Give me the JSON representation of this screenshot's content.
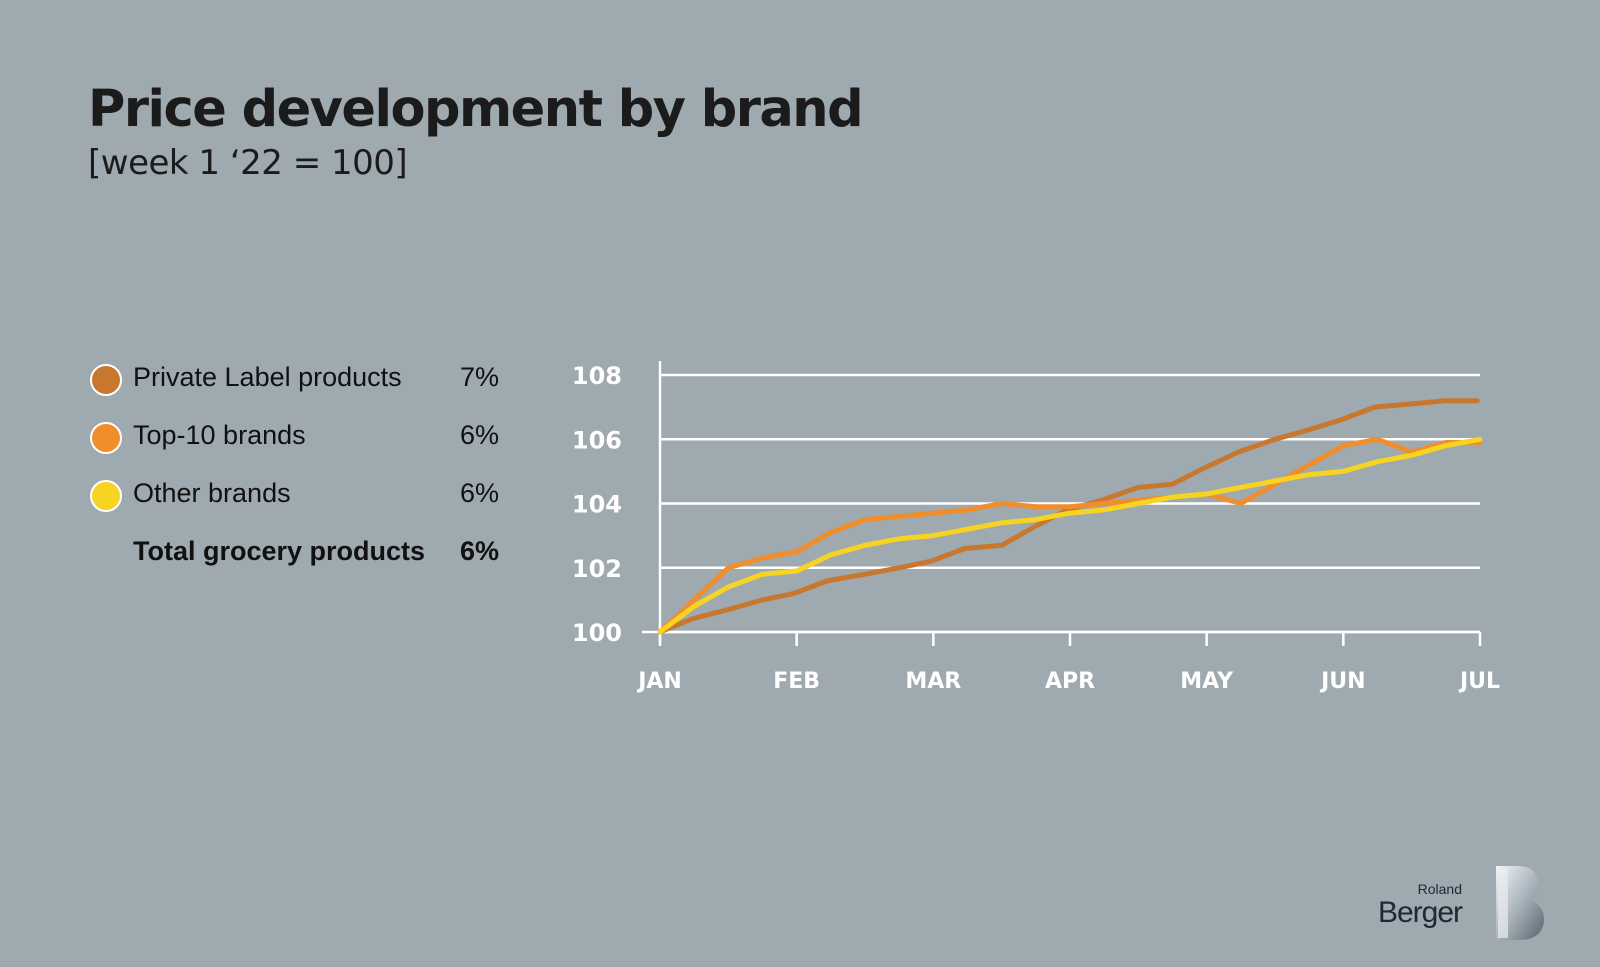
{
  "header": {
    "title": "Price development by brand",
    "subtitle": "[week 1 ‘22 = 100]"
  },
  "legend": [
    {
      "label": "Private Label products",
      "value": "7%",
      "color": "#c8782e"
    },
    {
      "label": "Top-10 brands",
      "value": "6%",
      "color": "#f08e2b"
    },
    {
      "label": "Other brands",
      "value": "6%",
      "color": "#f6d421"
    },
    {
      "label": "Total grocery products",
      "value": "6%"
    }
  ],
  "logo": {
    "small": "Roland",
    "big": "Berger"
  },
  "colors": {
    "background": "#9ea9b0",
    "grid": "#ffffff",
    "text": "#1b1b1b"
  },
  "chart_data": {
    "type": "line",
    "x_ticks": [
      "JAN",
      "FEB",
      "MAR",
      "APR",
      "MAY",
      "JUN",
      "JUL"
    ],
    "y_ticks": [
      100,
      102,
      104,
      106,
      108
    ],
    "ylim": [
      100,
      108
    ],
    "xlim": [
      0,
      6
    ],
    "grid": true,
    "series": [
      {
        "name": "Private Label products",
        "color": "#c8782e",
        "x": [
          0,
          0.23,
          0.5,
          0.75,
          0.98,
          1.23,
          1.5,
          1.75,
          1.98,
          2.23,
          2.5,
          2.75,
          2.98,
          3.23,
          3.5,
          3.75,
          3.98,
          4.23,
          4.5,
          4.75,
          4.98,
          5.23,
          5.5,
          5.75,
          5.98
        ],
        "y": [
          100.0,
          100.4,
          100.7,
          101.0,
          101.2,
          101.6,
          101.8,
          102.0,
          102.2,
          102.6,
          102.7,
          103.3,
          103.8,
          104.1,
          104.5,
          104.6,
          105.1,
          105.6,
          106.0,
          106.3,
          106.6,
          107.0,
          107.1,
          107.2,
          107.2
        ]
      },
      {
        "name": "Top-10 brands",
        "color": "#f08e2b",
        "x": [
          0,
          0.25,
          0.5,
          0.75,
          1.0,
          1.25,
          1.5,
          1.75,
          2.0,
          2.25,
          2.5,
          2.75,
          3.0,
          3.25,
          3.5,
          3.75,
          4.0,
          4.25,
          4.5,
          4.75,
          5.0,
          5.25,
          5.5,
          5.75,
          6.0
        ],
        "y": [
          100.0,
          101.0,
          102.0,
          102.3,
          102.5,
          103.1,
          103.5,
          103.6,
          103.7,
          103.8,
          104.0,
          103.9,
          103.9,
          104.0,
          104.1,
          104.2,
          104.3,
          104.0,
          104.6,
          105.2,
          105.8,
          106.0,
          105.6,
          105.9,
          105.9
        ]
      },
      {
        "name": "Other brands",
        "color": "#f6d421",
        "x": [
          0,
          0.25,
          0.5,
          0.75,
          1.0,
          1.25,
          1.5,
          1.75,
          2.0,
          2.25,
          2.5,
          2.75,
          3.0,
          3.25,
          3.5,
          3.75,
          4.0,
          4.25,
          4.5,
          4.75,
          5.0,
          5.25,
          5.5,
          5.75,
          6.0
        ],
        "y": [
          100.0,
          100.8,
          101.4,
          101.8,
          101.9,
          102.4,
          102.7,
          102.9,
          103.0,
          103.2,
          103.4,
          103.5,
          103.7,
          103.8,
          104.0,
          104.2,
          104.3,
          104.5,
          104.7,
          104.9,
          105.0,
          105.3,
          105.5,
          105.8,
          106.0
        ]
      }
    ]
  }
}
